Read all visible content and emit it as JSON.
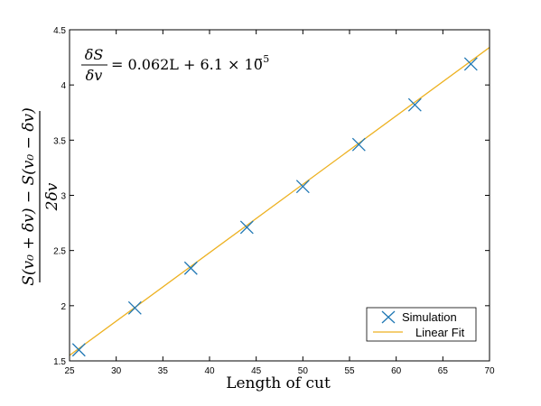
{
  "chart_data": {
    "type": "scatter",
    "xlabel": "Length of cut",
    "ylabel": {
      "numerator": "S(v₀ + δv) − S(v₀ − δv)",
      "denominator": "2δv"
    },
    "annotation": {
      "numerator": "δS",
      "denominator": "δv",
      "rhs": "= 0.062L + 6.1 × 10",
      "exponent": "−5"
    },
    "xlim": [
      25,
      70
    ],
    "ylim": [
      1.5,
      4.5
    ],
    "x_ticks": [
      25,
      30,
      35,
      40,
      45,
      50,
      55,
      60,
      65,
      70
    ],
    "y_ticks": [
      1.5,
      2,
      2.5,
      3,
      3.5,
      4,
      4.5
    ],
    "grid": false,
    "legend_position": "bottom-right",
    "series": [
      {
        "name": "Simulation",
        "kind": "scatter",
        "marker": "x",
        "color": "#1f77b4",
        "x": [
          26,
          32,
          38,
          44,
          50,
          56,
          62,
          68
        ],
        "y": [
          1.6,
          1.98,
          2.34,
          2.71,
          3.08,
          3.46,
          3.82,
          4.19
        ]
      },
      {
        "name": "Linear Fit",
        "kind": "line",
        "color": "#edb120",
        "slope": 0.062,
        "intercept": 6.1e-05,
        "x_start": 25,
        "x_end": 70
      }
    ]
  }
}
